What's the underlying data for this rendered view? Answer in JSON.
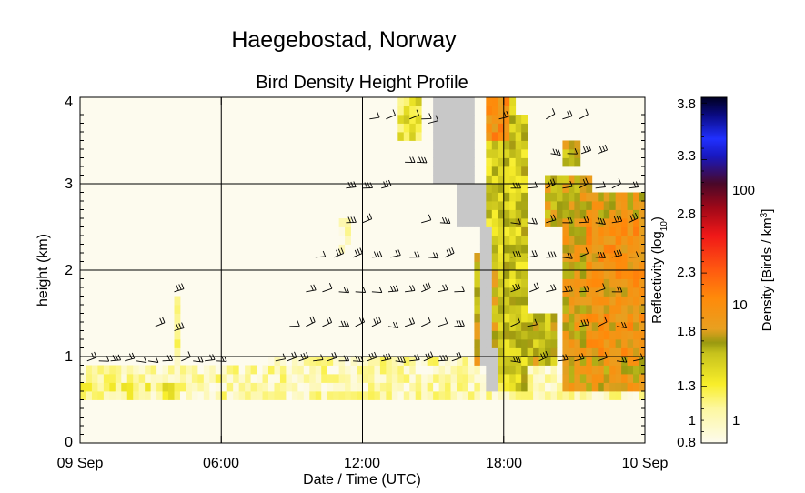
{
  "chart_data": {
    "type": "heatmap",
    "title": "Haegebostad, Norway",
    "subtitle": "Bird Density Height Profile",
    "xlabel": "Date / Time (UTC)",
    "ylabel": "height (km)",
    "x_ticks": [
      "09 Sep",
      "06:00",
      "12:00",
      "18:00",
      "10 Sep"
    ],
    "y_ticks": [
      "0",
      "1",
      "2",
      "3",
      "4"
    ],
    "xlim_hours": [
      0,
      24
    ],
    "ylim_km": [
      0,
      4
    ],
    "grid_hours": [
      6,
      12,
      18
    ],
    "grid_km": [
      1,
      2,
      3
    ],
    "colorbar": {
      "left_label": "Reflectivity (log10)",
      "right_label": "Density [Birds / km3]",
      "reflectivity_ticks": [
        "0.8",
        "1",
        "1.3",
        "1.8",
        "2.3",
        "2.8",
        "3.3",
        "3.8"
      ],
      "density_ticks": [
        "1",
        "10",
        "100"
      ],
      "range": [
        0.8,
        3.85
      ]
    },
    "colors": {
      "nodata": "#c8c8c8",
      "background": "#fdfbee"
    },
    "bins": {
      "time_step_hours": 0.25,
      "height_step_km": 0.1
    },
    "density_regions": [
      {
        "t": [
          0,
          24
        ],
        "h": [
          0.5,
          0.9
        ],
        "v": 1.0
      },
      {
        "t": [
          3.5,
          4.2
        ],
        "h": [
          0.5,
          0.7
        ],
        "v": 1.25
      },
      {
        "t": [
          3.9,
          4.3
        ],
        "h": [
          0.8,
          1.7
        ],
        "v": 1.05
      },
      {
        "t": [
          0,
          3
        ],
        "h": [
          0.5,
          0.7
        ],
        "v": 1.15
      },
      {
        "t": [
          12,
          17
        ],
        "h": [
          0.8,
          1.0
        ],
        "v": 1.0
      },
      {
        "t": [
          17.2,
          18.4
        ],
        "h": [
          0.7,
          4.0
        ],
        "v": 1.45
      },
      {
        "t": [
          13.6,
          14.6
        ],
        "h": [
          3.5,
          4.0
        ],
        "v": 1.3
      },
      {
        "t": [
          15.6,
          16.6
        ],
        "h": [
          3.6,
          4.0
        ],
        "v": 2.0
      },
      {
        "t": [
          17.2,
          18.2
        ],
        "h": [
          3.5,
          4.0
        ],
        "v": 2.0
      },
      {
        "t": [
          18.0,
          19.0
        ],
        "h": [
          0.6,
          3.8
        ],
        "v": 1.5
      },
      {
        "t": [
          20.5,
          21.2
        ],
        "h": [
          3.2,
          3.5
        ],
        "v": 1.6
      },
      {
        "t": [
          19.8,
          21.8
        ],
        "h": [
          2.5,
          3.1
        ],
        "v": 1.7
      },
      {
        "t": [
          20.5,
          24
        ],
        "h": [
          0.6,
          2.9
        ],
        "v": 1.8
      },
      {
        "t": [
          21.4,
          24
        ],
        "h": [
          1.0,
          2.6
        ],
        "v": 1.95
      },
      {
        "t": [
          19.0,
          20.2
        ],
        "h": [
          0.9,
          1.5
        ],
        "v": 1.6
      },
      {
        "t": [
          16.8,
          17.8
        ],
        "h": [
          0.9,
          2.2
        ],
        "v": 1.7
      },
      {
        "t": [
          11.0,
          11.4
        ],
        "h": [
          2.2,
          2.6
        ],
        "v": 1.0
      },
      {
        "t": [
          8.0,
          12.0
        ],
        "h": [
          0.7,
          1.0
        ],
        "v": 0.95
      }
    ],
    "nodata_regions": [
      {
        "t": [
          15.0,
          16.8
        ],
        "h": [
          3.0,
          4.0
        ]
      },
      {
        "t": [
          15.9,
          17.2
        ],
        "h": [
          2.5,
          3.0
        ]
      },
      {
        "t": [
          16.9,
          17.5
        ],
        "h": [
          0.9,
          2.5
        ]
      },
      {
        "t": [
          17.2,
          17.7
        ],
        "h": [
          0.6,
          1.1
        ]
      }
    ],
    "wind_barbs": [
      {
        "t": 0.3,
        "h": 0.95
      },
      {
        "t": 0.8,
        "h": 0.95
      },
      {
        "t": 1.3,
        "h": 0.95
      },
      {
        "t": 1.9,
        "h": 0.95
      },
      {
        "t": 2.4,
        "h": 0.95
      },
      {
        "t": 2.9,
        "h": 0.95
      },
      {
        "t": 3.5,
        "h": 0.95
      },
      {
        "t": 4.3,
        "h": 0.95
      },
      {
        "t": 4.8,
        "h": 0.95
      },
      {
        "t": 5.3,
        "h": 0.95
      },
      {
        "t": 5.8,
        "h": 0.95
      },
      {
        "t": 3.2,
        "h": 1.35
      },
      {
        "t": 4.0,
        "h": 1.3
      },
      {
        "t": 4.0,
        "h": 1.75
      },
      {
        "t": 8.3,
        "h": 0.95
      },
      {
        "t": 8.8,
        "h": 0.95
      },
      {
        "t": 9.3,
        "h": 0.95
      },
      {
        "t": 9.9,
        "h": 0.95
      },
      {
        "t": 10.5,
        "h": 0.95
      },
      {
        "t": 11.0,
        "h": 0.95
      },
      {
        "t": 11.6,
        "h": 0.95
      },
      {
        "t": 12.2,
        "h": 0.95
      },
      {
        "t": 12.8,
        "h": 0.95
      },
      {
        "t": 13.4,
        "h": 0.95
      },
      {
        "t": 14.0,
        "h": 0.95
      },
      {
        "t": 14.6,
        "h": 0.95
      },
      {
        "t": 15.2,
        "h": 0.95
      },
      {
        "t": 15.8,
        "h": 0.95
      },
      {
        "t": 8.9,
        "h": 1.35
      },
      {
        "t": 9.6,
        "h": 1.35
      },
      {
        "t": 10.3,
        "h": 1.35
      },
      {
        "t": 11.0,
        "h": 1.35
      },
      {
        "t": 11.7,
        "h": 1.35
      },
      {
        "t": 12.4,
        "h": 1.35
      },
      {
        "t": 13.1,
        "h": 1.35
      },
      {
        "t": 13.8,
        "h": 1.35
      },
      {
        "t": 14.5,
        "h": 1.35
      },
      {
        "t": 15.2,
        "h": 1.35
      },
      {
        "t": 15.9,
        "h": 1.35
      },
      {
        "t": 9.6,
        "h": 1.75
      },
      {
        "t": 10.3,
        "h": 1.75
      },
      {
        "t": 11.0,
        "h": 1.75
      },
      {
        "t": 11.7,
        "h": 1.75
      },
      {
        "t": 12.4,
        "h": 1.75
      },
      {
        "t": 13.1,
        "h": 1.75
      },
      {
        "t": 13.8,
        "h": 1.75
      },
      {
        "t": 14.5,
        "h": 1.75
      },
      {
        "t": 15.2,
        "h": 1.75
      },
      {
        "t": 15.9,
        "h": 1.75
      },
      {
        "t": 10.0,
        "h": 2.15
      },
      {
        "t": 10.8,
        "h": 2.15
      },
      {
        "t": 11.6,
        "h": 2.15
      },
      {
        "t": 12.4,
        "h": 2.15
      },
      {
        "t": 13.2,
        "h": 2.15
      },
      {
        "t": 14.0,
        "h": 2.15
      },
      {
        "t": 14.8,
        "h": 2.15
      },
      {
        "t": 15.5,
        "h": 2.15
      },
      {
        "t": 11.3,
        "h": 2.55
      },
      {
        "t": 12.0,
        "h": 2.55
      },
      {
        "t": 14.5,
        "h": 2.55
      },
      {
        "t": 15.3,
        "h": 2.55
      },
      {
        "t": 11.3,
        "h": 2.95
      },
      {
        "t": 12.0,
        "h": 2.95
      },
      {
        "t": 12.8,
        "h": 2.95
      },
      {
        "t": 13.8,
        "h": 3.25
      },
      {
        "t": 14.3,
        "h": 3.25
      },
      {
        "t": 12.3,
        "h": 3.75
      },
      {
        "t": 13.0,
        "h": 3.75
      },
      {
        "t": 14.0,
        "h": 3.75
      },
      {
        "t": 14.5,
        "h": 3.75
      },
      {
        "t": 14.8,
        "h": 3.7
      },
      {
        "t": 17.8,
        "h": 3.75
      },
      {
        "t": 19.8,
        "h": 3.75
      },
      {
        "t": 20.5,
        "h": 3.75
      },
      {
        "t": 21.2,
        "h": 3.75
      },
      {
        "t": 20.0,
        "h": 3.35
      },
      {
        "t": 20.7,
        "h": 3.35
      },
      {
        "t": 21.3,
        "h": 3.35
      },
      {
        "t": 22.0,
        "h": 3.35
      },
      {
        "t": 18.3,
        "h": 2.95
      },
      {
        "t": 19.0,
        "h": 2.95
      },
      {
        "t": 19.8,
        "h": 2.95
      },
      {
        "t": 20.5,
        "h": 2.95
      },
      {
        "t": 21.2,
        "h": 2.95
      },
      {
        "t": 21.9,
        "h": 2.95
      },
      {
        "t": 22.6,
        "h": 2.95
      },
      {
        "t": 23.3,
        "h": 2.95
      },
      {
        "t": 18.3,
        "h": 2.55
      },
      {
        "t": 19.0,
        "h": 2.55
      },
      {
        "t": 19.8,
        "h": 2.55
      },
      {
        "t": 20.5,
        "h": 2.55
      },
      {
        "t": 21.2,
        "h": 2.55
      },
      {
        "t": 21.9,
        "h": 2.55
      },
      {
        "t": 22.6,
        "h": 2.55
      },
      {
        "t": 23.3,
        "h": 2.55
      },
      {
        "t": 18.3,
        "h": 2.15
      },
      {
        "t": 19.0,
        "h": 2.15
      },
      {
        "t": 19.8,
        "h": 2.15
      },
      {
        "t": 20.5,
        "h": 2.15
      },
      {
        "t": 21.2,
        "h": 2.15
      },
      {
        "t": 21.9,
        "h": 2.15
      },
      {
        "t": 22.6,
        "h": 2.15
      },
      {
        "t": 23.3,
        "h": 2.15
      },
      {
        "t": 18.3,
        "h": 1.75
      },
      {
        "t": 19.1,
        "h": 1.75
      },
      {
        "t": 19.8,
        "h": 1.75
      },
      {
        "t": 20.5,
        "h": 1.75
      },
      {
        "t": 21.2,
        "h": 1.75
      },
      {
        "t": 21.9,
        "h": 1.75
      },
      {
        "t": 22.6,
        "h": 1.75
      },
      {
        "t": 18.3,
        "h": 1.35
      },
      {
        "t": 19.0,
        "h": 1.35
      },
      {
        "t": 21.2,
        "h": 1.35
      },
      {
        "t": 22.0,
        "h": 1.35
      },
      {
        "t": 22.8,
        "h": 1.35
      },
      {
        "t": 18.3,
        "h": 0.95
      },
      {
        "t": 19.5,
        "h": 0.95
      },
      {
        "t": 20.3,
        "h": 0.95
      },
      {
        "t": 21.0,
        "h": 0.95
      },
      {
        "t": 22.0,
        "h": 0.95
      },
      {
        "t": 22.8,
        "h": 0.95
      },
      {
        "t": 23.5,
        "h": 0.95
      }
    ]
  }
}
